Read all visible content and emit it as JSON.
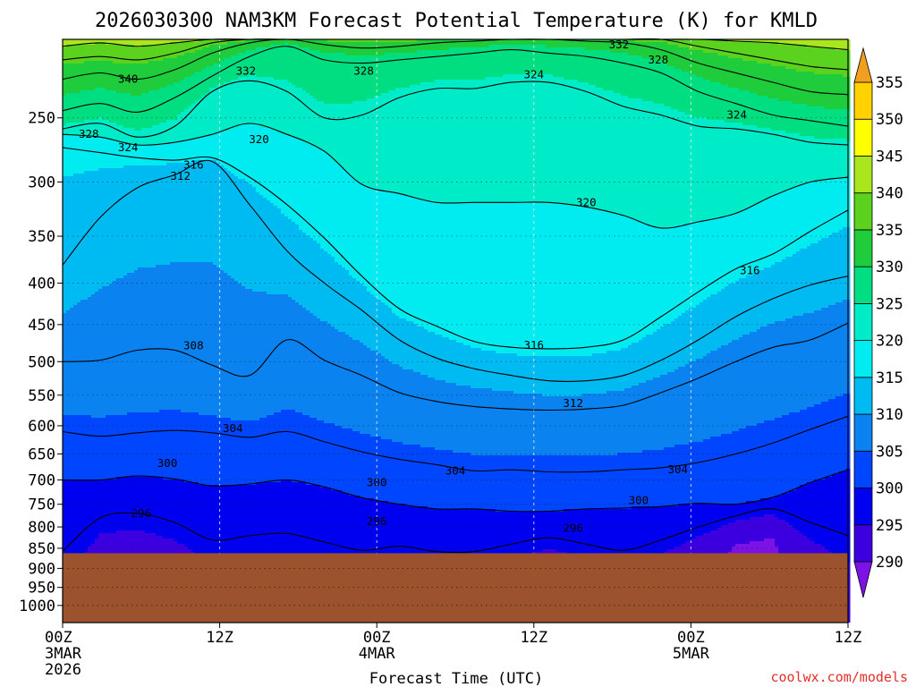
{
  "title": "2026030300 NAM3KM Forecast Potential Temperature (K) for KMLD",
  "xlabel": "Forecast Time (UTC)",
  "credit": "coolwx.com/models",
  "colors": {
    "ground": "#9b522d",
    "grid": "#9a9a9a",
    "contour": "#000000"
  },
  "chart_data": {
    "type": "heatmap",
    "title": "2026030300 NAM3KM Forecast Potential Temperature (K) for KMLD",
    "xlabel": "Forecast Time (UTC)",
    "ylabel": "",
    "y_axis": "pressure (hPa), log scale, inverted",
    "ylim": [
      1050,
      200
    ],
    "y_ticks": [
      250,
      300,
      350,
      400,
      450,
      500,
      550,
      600,
      650,
      700,
      750,
      800,
      850,
      900,
      950,
      1000
    ],
    "x_ticks": [
      {
        "hour": 0,
        "label": "00Z",
        "sub": [
          "3MAR",
          "2026"
        ]
      },
      {
        "hour": 12,
        "label": "12Z",
        "sub": []
      },
      {
        "hour": 24,
        "label": "00Z",
        "sub": [
          "4MAR"
        ]
      },
      {
        "hour": 36,
        "label": "12Z",
        "sub": []
      },
      {
        "hour": 48,
        "label": "00Z",
        "sub": [
          "5MAR"
        ]
      },
      {
        "hour": 60,
        "label": "12Z",
        "sub": []
      }
    ],
    "xlim": [
      0,
      60
    ],
    "ground_pressure": 862,
    "colorbar": {
      "levels": [
        290,
        295,
        300,
        305,
        310,
        315,
        320,
        325,
        330,
        335,
        340,
        345,
        350,
        355
      ],
      "labels": [
        "355",
        "350",
        "345",
        "340",
        "335",
        "330",
        "325",
        "320",
        "315",
        "310",
        "305",
        "300",
        "295",
        "290"
      ],
      "colors": [
        "#7d12e6",
        "#3c00e0",
        "#0000f0",
        "#0046ff",
        "#0a82f0",
        "#00baf2",
        "#00ecf0",
        "#00ebc8",
        "#00de82",
        "#1ecc3c",
        "#5ad21e",
        "#aae61e",
        "#ffff00",
        "#ffd200",
        "#f0a01e"
      ]
    },
    "contour_interval": 4,
    "isentropes": [
      {
        "theta": 296,
        "p": [
          858,
          780,
          770,
          790,
          830,
          820,
          815,
          835,
          855,
          845,
          858,
          858,
          840,
          825,
          840,
          855,
          830,
          800,
          775,
          760,
          790,
          820
        ]
      },
      {
        "theta": 300,
        "p": [
          700,
          700,
          692,
          698,
          712,
          708,
          700,
          714,
          736,
          750,
          760,
          760,
          765,
          765,
          760,
          758,
          755,
          748,
          750,
          735,
          705,
          680
        ]
      },
      {
        "theta": 304,
        "p": [
          610,
          618,
          612,
          608,
          612,
          620,
          610,
          628,
          646,
          660,
          670,
          682,
          680,
          684,
          684,
          680,
          676,
          666,
          650,
          630,
          606,
          584
        ]
      },
      {
        "theta": 308,
        "p": [
          500,
          498,
          484,
          484,
          505,
          520,
          470,
          498,
          520,
          546,
          560,
          568,
          572,
          574,
          572,
          566,
          546,
          524,
          500,
          480,
          470,
          448
        ]
      },
      {
        "theta": 312,
        "p": [
          380,
          332,
          305,
          294,
          283,
          320,
          365,
          400,
          432,
          470,
          495,
          510,
          520,
          528,
          528,
          520,
          498,
          470,
          440,
          418,
          402,
          392
        ]
      },
      {
        "theta": 316,
        "p": [
          272,
          276,
          280,
          282,
          280,
          296,
          320,
          352,
          392,
          430,
          452,
          472,
          480,
          482,
          480,
          470,
          440,
          410,
          384,
          368,
          345,
          325
        ]
      },
      {
        "theta": 320,
        "p": [
          262,
          264,
          270,
          268,
          262,
          254,
          262,
          275,
          302,
          310,
          318,
          318,
          318,
          318,
          322,
          330,
          342,
          336,
          328,
          312,
          300,
          296
        ]
      },
      {
        "theta": 324,
        "p": [
          258,
          254,
          264,
          256,
          232,
          225,
          232,
          250,
          248,
          236,
          230,
          230,
          226,
          226,
          232,
          242,
          248,
          256,
          258,
          262,
          268,
          270
        ]
      },
      {
        "theta": 328,
        "p": [
          245,
          240,
          246,
          236,
          222,
          210,
          204,
          212,
          214,
          212,
          210,
          208,
          206,
          208,
          210,
          214,
          220,
          232,
          240,
          248,
          252,
          256
        ]
      },
      {
        "theta": 332,
        "p": [
          224,
          220,
          224,
          218,
          208,
          202,
          200,
          203,
          205,
          204,
          202,
          201,
          200,
          200,
          201,
          202,
          206,
          214,
          220,
          226,
          232,
          234
        ]
      },
      {
        "theta": 336,
        "p": [
          212,
          210,
          212,
          208,
          202,
          200,
          200,
          200,
          200,
          200,
          200,
          200,
          200,
          200,
          200,
          200,
          200,
          204,
          208,
          212,
          216,
          218
        ]
      },
      {
        "theta": 340,
        "p": [
          204,
          202,
          204,
          202,
          200,
          200,
          200,
          200,
          200,
          200,
          200,
          200,
          200,
          200,
          200,
          200,
          200,
          200,
          201,
          202,
          204,
          206
        ]
      }
    ],
    "contour_labels": [
      {
        "text": "332",
        "hour": 42.5,
        "p": 203
      },
      {
        "text": "328",
        "hour": 45.5,
        "p": 212
      },
      {
        "text": "340",
        "hour": 5,
        "p": 224
      },
      {
        "text": "332",
        "hour": 14,
        "p": 219
      },
      {
        "text": "328",
        "hour": 23,
        "p": 219
      },
      {
        "text": "324",
        "hour": 36,
        "p": 221
      },
      {
        "text": "324",
        "hour": 51.5,
        "p": 248
      },
      {
        "text": "328",
        "hour": 2,
        "p": 262
      },
      {
        "text": "324",
        "hour": 5,
        "p": 272
      },
      {
        "text": "320",
        "hour": 15,
        "p": 266
      },
      {
        "text": "316",
        "hour": 10,
        "p": 286
      },
      {
        "text": "312",
        "hour": 9,
        "p": 295
      },
      {
        "text": "320",
        "hour": 40,
        "p": 318
      },
      {
        "text": "316",
        "hour": 52.5,
        "p": 386
      },
      {
        "text": "316",
        "hour": 36,
        "p": 477
      },
      {
        "text": "308",
        "hour": 10,
        "p": 478
      },
      {
        "text": "312",
        "hour": 39,
        "p": 563
      },
      {
        "text": "304",
        "hour": 13,
        "p": 605
      },
      {
        "text": "300",
        "hour": 8,
        "p": 668
      },
      {
        "text": "304",
        "hour": 30,
        "p": 682
      },
      {
        "text": "304",
        "hour": 47,
        "p": 680
      },
      {
        "text": "300",
        "hour": 24,
        "p": 705
      },
      {
        "text": "300",
        "hour": 44,
        "p": 742
      },
      {
        "text": "296",
        "hour": 6,
        "p": 770
      },
      {
        "text": "296",
        "hour": 24,
        "p": 788
      },
      {
        "text": "296",
        "hour": 39,
        "p": 803
      }
    ]
  }
}
